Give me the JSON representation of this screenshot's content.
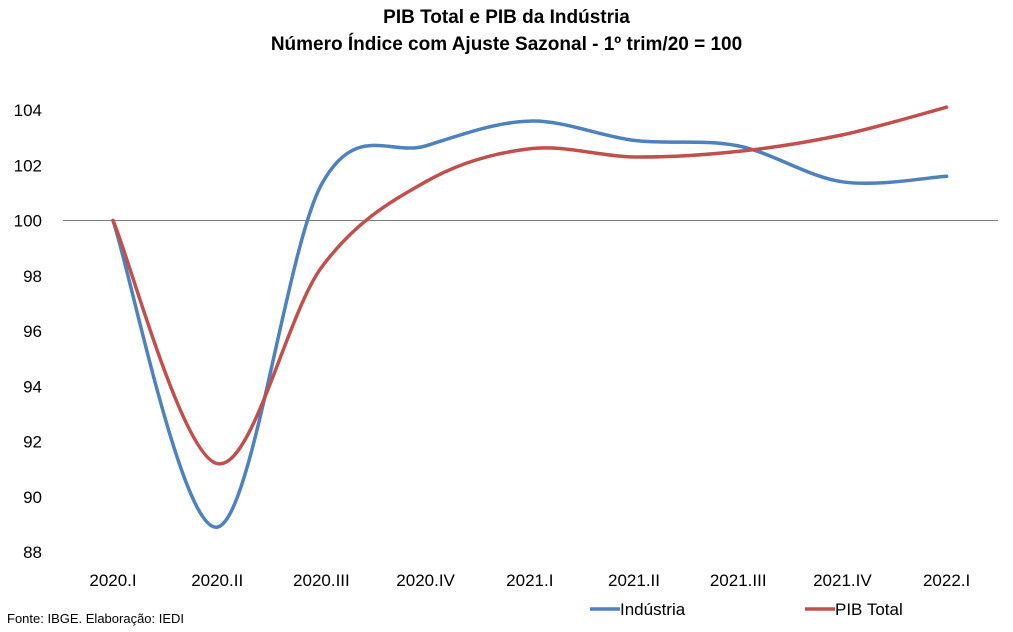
{
  "chart_data": {
    "type": "line",
    "title": "PIB Total e PIB da Indústria",
    "subtitle": "Número Índice com Ajuste Sazonal - 1º trim/20 = 100",
    "categories": [
      "2020.I",
      "2020.II",
      "2020.III",
      "2020.IV",
      "2021.I",
      "2021.II",
      "2021.III",
      "2021.IV",
      "2022.I"
    ],
    "ylim": [
      88,
      104
    ],
    "yticks": [
      88,
      90,
      92,
      94,
      96,
      98,
      100,
      102,
      104
    ],
    "reference_line": 100,
    "grid": false,
    "legend_position": "bottom-right",
    "series": [
      {
        "name": "Indústria",
        "color": "#4f81bd",
        "values": [
          100.0,
          88.9,
          101.3,
          102.7,
          103.6,
          102.9,
          102.7,
          101.4,
          101.6
        ]
      },
      {
        "name": "PIB Total",
        "color": "#c0504d",
        "values": [
          100.0,
          91.2,
          98.3,
          101.4,
          102.6,
          102.3,
          102.5,
          103.1,
          104.1
        ]
      }
    ]
  },
  "footer": {
    "source": "Fonte: IBGE. Elaboração: IEDI"
  }
}
